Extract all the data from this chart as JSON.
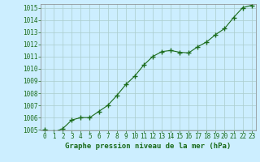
{
  "x": [
    0,
    1,
    2,
    3,
    4,
    5,
    6,
    7,
    8,
    9,
    10,
    11,
    12,
    13,
    14,
    15,
    16,
    17,
    18,
    19,
    20,
    21,
    22,
    23
  ],
  "y": [
    1005.0,
    1004.8,
    1005.1,
    1005.8,
    1006.0,
    1006.0,
    1006.5,
    1007.0,
    1007.8,
    1008.7,
    1009.4,
    1010.3,
    1011.0,
    1011.4,
    1011.5,
    1011.35,
    1011.3,
    1011.8,
    1012.2,
    1012.8,
    1013.3,
    1014.2,
    1015.0,
    1015.2
  ],
  "line_color": "#1a6b1a",
  "marker": "+",
  "marker_size": 4,
  "bg_color": "#cceeff",
  "grid_color": "#aacccc",
  "xlabel": "Graphe pression niveau de la mer (hPa)",
  "xlabel_color": "#1a6b1a",
  "tick_color": "#1a6b1a",
  "ylim": [
    1005,
    1015
  ],
  "xlim": [
    -0.5,
    23.5
  ],
  "yticks": [
    1005,
    1006,
    1007,
    1008,
    1009,
    1010,
    1011,
    1012,
    1013,
    1014,
    1015
  ],
  "xticks": [
    0,
    1,
    2,
    3,
    4,
    5,
    6,
    7,
    8,
    9,
    10,
    11,
    12,
    13,
    14,
    15,
    16,
    17,
    18,
    19,
    20,
    21,
    22,
    23
  ],
  "tick_fontsize": 5.5,
  "xlabel_fontsize": 6.5
}
